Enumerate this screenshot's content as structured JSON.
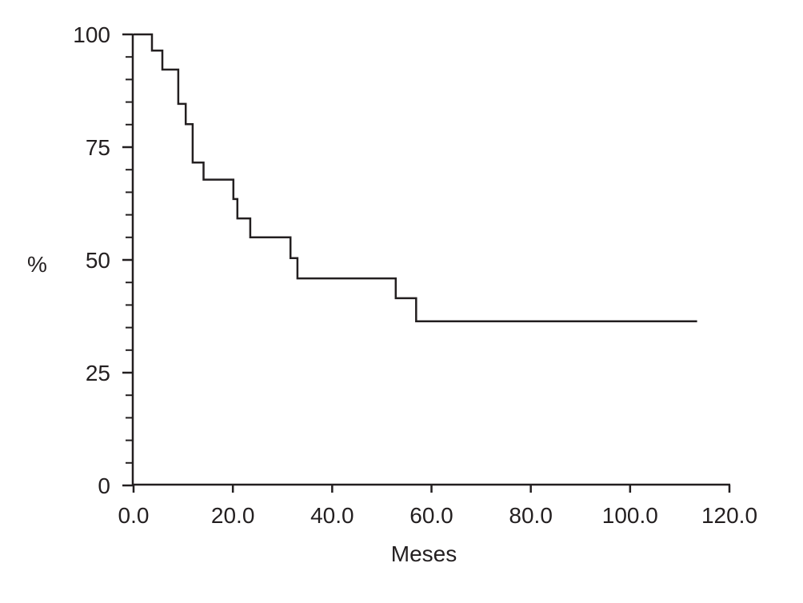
{
  "figure": {
    "background": "#ffffff"
  },
  "colors": {
    "line": "#231f20",
    "text": "#231f20"
  },
  "chart_data": {
    "type": "line",
    "subtype": "kaplan-meier-step-curve",
    "title": "",
    "xlabel": "Meses",
    "ylabel": "%",
    "xlim": [
      0,
      120
    ],
    "ylim": [
      0,
      100
    ],
    "grid": false,
    "legend": null,
    "x_ticks": [
      {
        "value": 0,
        "label": "0.0"
      },
      {
        "value": 20,
        "label": "20.0"
      },
      {
        "value": 40,
        "label": "40.0"
      },
      {
        "value": 60,
        "label": "60.0"
      },
      {
        "value": 80,
        "label": "80.0"
      },
      {
        "value": 100,
        "label": "100.0"
      },
      {
        "value": 120,
        "label": "120.0"
      }
    ],
    "y_ticks": [
      {
        "value": 0,
        "label": "0"
      },
      {
        "value": 25,
        "label": "25"
      },
      {
        "value": 50,
        "label": "50"
      },
      {
        "value": 75,
        "label": "75"
      },
      {
        "value": 100,
        "label": "100"
      }
    ],
    "y_minor_tick_step": 5,
    "series": [
      {
        "name": "survival-curve",
        "color": "#231f20",
        "points": [
          [
            0,
            100
          ],
          [
            3.7,
            100
          ],
          [
            3.7,
            96.4
          ],
          [
            5.8,
            96.4
          ],
          [
            5.8,
            92.2
          ],
          [
            9.0,
            92.2
          ],
          [
            9.0,
            84.6
          ],
          [
            10.5,
            84.6
          ],
          [
            10.5,
            80.1
          ],
          [
            11.9,
            80.1
          ],
          [
            11.9,
            71.6
          ],
          [
            14.1,
            71.6
          ],
          [
            14.1,
            67.8
          ],
          [
            20.1,
            67.8
          ],
          [
            20.1,
            63.5
          ],
          [
            20.9,
            63.5
          ],
          [
            20.9,
            59.2
          ],
          [
            23.5,
            59.2
          ],
          [
            23.5,
            55.0
          ],
          [
            31.6,
            55.0
          ],
          [
            31.6,
            50.4
          ],
          [
            33.0,
            50.4
          ],
          [
            33.0,
            45.9
          ],
          [
            52.8,
            45.9
          ],
          [
            52.8,
            41.5
          ],
          [
            56.9,
            41.5
          ],
          [
            56.9,
            36.4
          ],
          [
            113.5,
            36.4
          ]
        ]
      }
    ]
  }
}
